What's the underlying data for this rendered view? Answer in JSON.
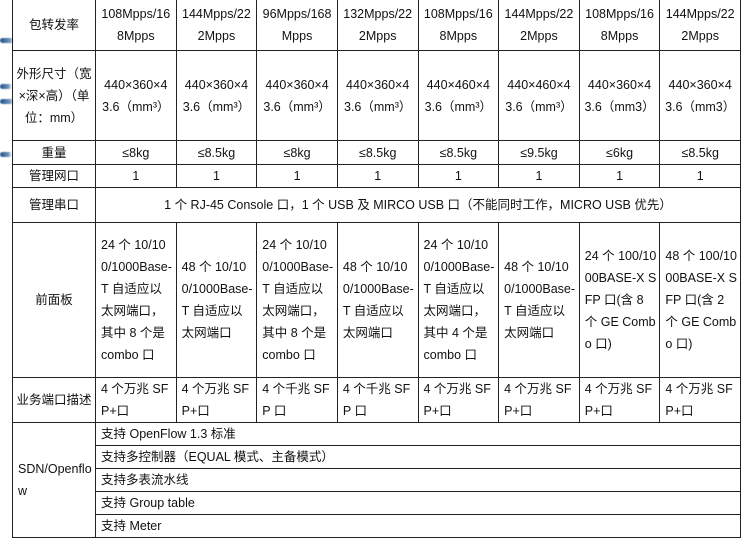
{
  "rows": {
    "forwarding": {
      "label": "包转发率",
      "values": [
        "108Mpps/168Mpps",
        "144Mpps/222Mpps",
        "96Mpps/168Mpps",
        "132Mpps/222Mpps",
        "108Mpps/168Mpps",
        "144Mpps/222Mpps",
        "108Mpps/168Mpps",
        "144Mpps/222Mpps"
      ]
    },
    "dimensions": {
      "label": "外形尺寸（宽×深×高）（单位：mm）",
      "values": [
        "440×360×43.6（mm³）",
        "440×360×43.6（mm³）",
        "440×360×43.6（mm³）",
        "440×360×43.6（mm³）",
        "440×460×43.6（mm³）",
        "440×460×43.6（mm³）",
        "440×360×43.6（mm3）",
        "440×360×43.6（mm3）"
      ]
    },
    "weight": {
      "label": "重量",
      "values": [
        "≤8kg",
        "≤8.5kg",
        "≤8kg",
        "≤8.5kg",
        "≤8.5kg",
        "≤9.5kg",
        "≤6kg",
        "≤8.5kg"
      ]
    },
    "mgmt_port": {
      "label": "管理网口",
      "values": [
        "1",
        "1",
        "1",
        "1",
        "1",
        "1",
        "1",
        "1"
      ]
    },
    "mgmt_serial": {
      "label": "管理串口",
      "value": "1 个 RJ-45 Console 口，1 个 USB 及 MIRCO USB 口（不能同时工作，MICRO USB 优先）"
    },
    "front_panel": {
      "label": "前面板",
      "values": [
        "24 个 10/100/1000Base-T 自适应以太网端口，其中 8 个是 combo 口",
        "48 个 10/100/1000Base-T 自适应以太网端口",
        "24 个 10/100/1000Base-T 自适应以太网端口，其中 8 个是 combo 口",
        "48 个 10/100/1000Base-T 自适应以太网端口",
        "24 个 10/100/1000Base-T 自适应以太网端口，其中 4 个是 combo 口",
        "48 个 10/100/1000Base-T 自适应以太网端口",
        "24 个 100/1000BASE-X SFP 口(含 8 个 GE Combo 口)",
        "48 个 100/1000BASE-X SFP 口(含 2 个 GE Combo 口)"
      ]
    },
    "service_ports": {
      "label": "业务端口描述",
      "values": [
        "4 个万兆 SFP+口",
        "4 个万兆 SFP+口",
        "4 个千兆 SFP 口",
        "4 个千兆 SFP 口",
        "4 个万兆 SFP+口",
        "4 个万兆 SFP+口",
        "4 个万兆 SFP+口",
        "4 个万兆 SFP+口"
      ]
    },
    "sdn": {
      "label": "SDN/Openflow",
      "items": [
        "支持 OpenFlow 1.3 标准",
        "支持多控制器（EQUAL 模式、主备模式）",
        "支持多表流水线",
        "支持 Group table",
        "支持 Meter"
      ]
    }
  },
  "colors": {
    "decoration": "#1d4f86",
    "border": "#222222"
  }
}
